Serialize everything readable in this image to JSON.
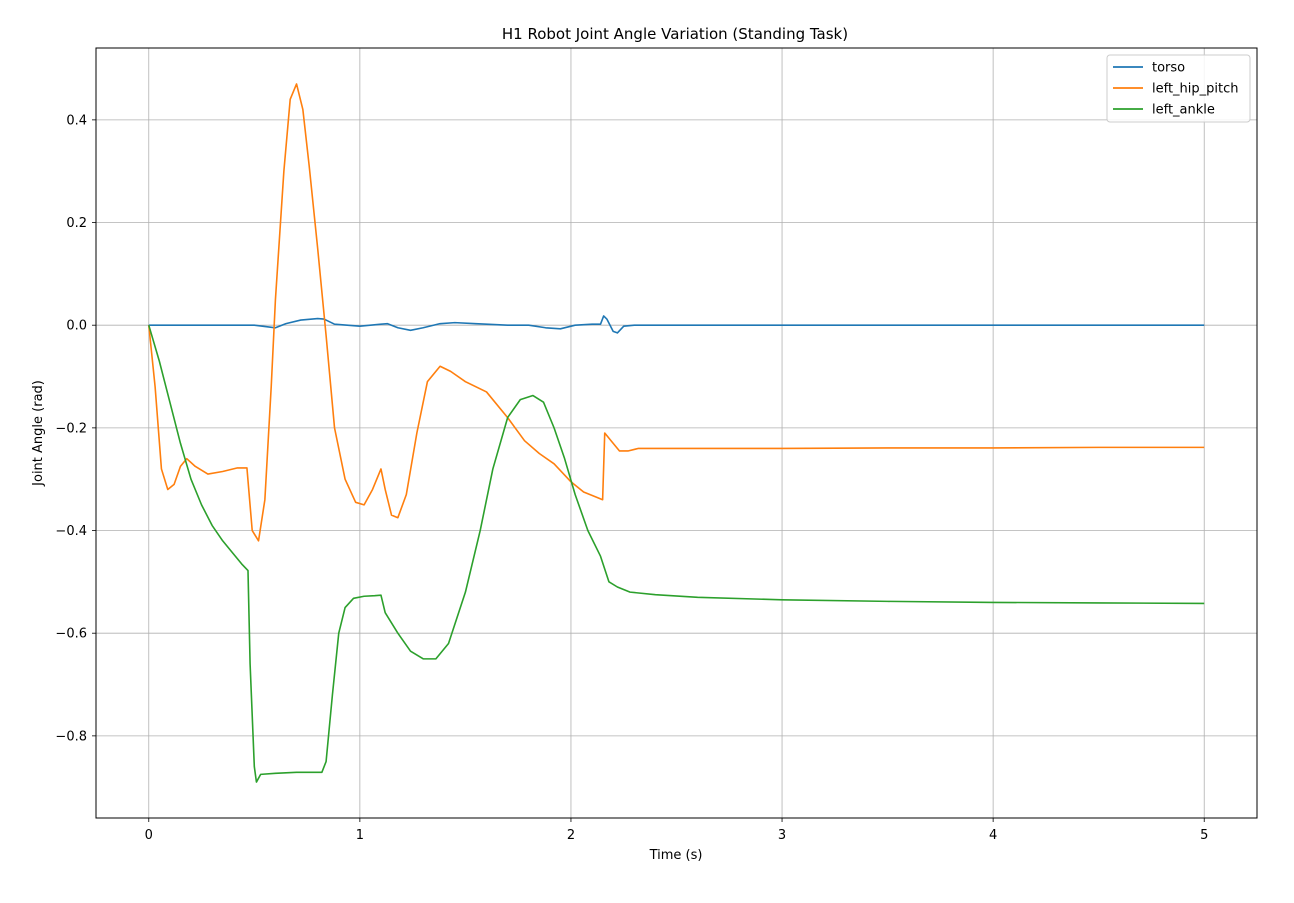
{
  "chart_data": {
    "type": "line",
    "title": "H1 Robot Joint Angle Variation (Standing Task)",
    "xlabel": "Time (s)",
    "ylabel": "Joint Angle (rad)",
    "xlim": [
      -0.25,
      5.25
    ],
    "ylim": [
      -0.96,
      0.54
    ],
    "xticks": [
      0,
      1,
      2,
      3,
      4,
      5
    ],
    "xtick_labels": [
      "0",
      "1",
      "2",
      "3",
      "4",
      "5"
    ],
    "yticks": [
      -0.8,
      -0.6,
      -0.4,
      -0.2,
      0.0,
      0.2,
      0.4
    ],
    "ytick_labels": [
      "−0.8",
      "−0.6",
      "−0.4",
      "−0.2",
      "0.0",
      "0.2",
      "0.4"
    ],
    "grid": true,
    "legend_position": "top-right",
    "series": [
      {
        "name": "torso",
        "color": "#1f77b4",
        "points": [
          [
            0,
            0
          ],
          [
            0.3,
            0
          ],
          [
            0.5,
            0
          ],
          [
            0.6,
            -0.005
          ],
          [
            0.65,
            0.003
          ],
          [
            0.72,
            0.01
          ],
          [
            0.8,
            0.013
          ],
          [
            0.83,
            0.012
          ],
          [
            0.88,
            0.002
          ],
          [
            1.0,
            -0.002
          ],
          [
            1.1,
            0.002
          ],
          [
            1.13,
            0.003
          ],
          [
            1.18,
            -0.005
          ],
          [
            1.24,
            -0.01
          ],
          [
            1.3,
            -0.005
          ],
          [
            1.38,
            0.003
          ],
          [
            1.45,
            0.005
          ],
          [
            1.55,
            0.003
          ],
          [
            1.7,
            0
          ],
          [
            1.8,
            0
          ],
          [
            1.88,
            -0.005
          ],
          [
            1.95,
            -0.007
          ],
          [
            2.02,
            0
          ],
          [
            2.1,
            0.002
          ],
          [
            2.14,
            0.002
          ],
          [
            2.155,
            0.018
          ],
          [
            2.17,
            0.012
          ],
          [
            2.2,
            -0.012
          ],
          [
            2.22,
            -0.015
          ],
          [
            2.25,
            -0.002
          ],
          [
            2.3,
            0
          ],
          [
            3.0,
            0
          ],
          [
            4.0,
            0
          ],
          [
            5.0,
            0
          ]
        ]
      },
      {
        "name": "left_hip_pitch",
        "color": "#ff7f0e",
        "points": [
          [
            0,
            0
          ],
          [
            0.03,
            -0.12
          ],
          [
            0.06,
            -0.28
          ],
          [
            0.09,
            -0.32
          ],
          [
            0.12,
            -0.31
          ],
          [
            0.15,
            -0.275
          ],
          [
            0.18,
            -0.26
          ],
          [
            0.22,
            -0.275
          ],
          [
            0.28,
            -0.29
          ],
          [
            0.35,
            -0.285
          ],
          [
            0.42,
            -0.278
          ],
          [
            0.465,
            -0.278
          ],
          [
            0.49,
            -0.4
          ],
          [
            0.52,
            -0.42
          ],
          [
            0.55,
            -0.34
          ],
          [
            0.58,
            -0.12
          ],
          [
            0.6,
            0.05
          ],
          [
            0.64,
            0.3
          ],
          [
            0.67,
            0.44
          ],
          [
            0.7,
            0.47
          ],
          [
            0.73,
            0.42
          ],
          [
            0.76,
            0.31
          ],
          [
            0.8,
            0.15
          ],
          [
            0.84,
            -0.02
          ],
          [
            0.88,
            -0.2
          ],
          [
            0.93,
            -0.3
          ],
          [
            0.98,
            -0.345
          ],
          [
            1.02,
            -0.35
          ],
          [
            1.06,
            -0.32
          ],
          [
            1.1,
            -0.28
          ],
          [
            1.12,
            -0.32
          ],
          [
            1.15,
            -0.37
          ],
          [
            1.18,
            -0.375
          ],
          [
            1.22,
            -0.33
          ],
          [
            1.27,
            -0.21
          ],
          [
            1.32,
            -0.11
          ],
          [
            1.38,
            -0.08
          ],
          [
            1.43,
            -0.09
          ],
          [
            1.5,
            -0.11
          ],
          [
            1.6,
            -0.13
          ],
          [
            1.7,
            -0.18
          ],
          [
            1.78,
            -0.225
          ],
          [
            1.85,
            -0.25
          ],
          [
            1.92,
            -0.27
          ],
          [
            2.0,
            -0.305
          ],
          [
            2.06,
            -0.325
          ],
          [
            2.12,
            -0.335
          ],
          [
            2.15,
            -0.34
          ],
          [
            2.16,
            -0.21
          ],
          [
            2.19,
            -0.225
          ],
          [
            2.23,
            -0.245
          ],
          [
            2.27,
            -0.245
          ],
          [
            2.32,
            -0.24
          ],
          [
            2.6,
            -0.24
          ],
          [
            3.0,
            -0.24
          ],
          [
            3.5,
            -0.239
          ],
          [
            4.0,
            -0.239
          ],
          [
            4.5,
            -0.238
          ],
          [
            5.0,
            -0.238
          ]
        ]
      },
      {
        "name": "left_ankle",
        "color": "#2ca02c",
        "points": [
          [
            0,
            0
          ],
          [
            0.05,
            -0.07
          ],
          [
            0.1,
            -0.15
          ],
          [
            0.15,
            -0.23
          ],
          [
            0.2,
            -0.3
          ],
          [
            0.25,
            -0.35
          ],
          [
            0.3,
            -0.39
          ],
          [
            0.35,
            -0.42
          ],
          [
            0.4,
            -0.445
          ],
          [
            0.44,
            -0.465
          ],
          [
            0.47,
            -0.478
          ],
          [
            0.48,
            -0.66
          ],
          [
            0.5,
            -0.86
          ],
          [
            0.51,
            -0.89
          ],
          [
            0.53,
            -0.875
          ],
          [
            0.6,
            -0.873
          ],
          [
            0.7,
            -0.871
          ],
          [
            0.82,
            -0.871
          ],
          [
            0.84,
            -0.85
          ],
          [
            0.87,
            -0.72
          ],
          [
            0.9,
            -0.6
          ],
          [
            0.93,
            -0.55
          ],
          [
            0.97,
            -0.532
          ],
          [
            1.02,
            -0.528
          ],
          [
            1.07,
            -0.527
          ],
          [
            1.1,
            -0.526
          ],
          [
            1.12,
            -0.56
          ],
          [
            1.18,
            -0.6
          ],
          [
            1.24,
            -0.635
          ],
          [
            1.3,
            -0.65
          ],
          [
            1.36,
            -0.65
          ],
          [
            1.42,
            -0.62
          ],
          [
            1.5,
            -0.52
          ],
          [
            1.57,
            -0.4
          ],
          [
            1.63,
            -0.28
          ],
          [
            1.7,
            -0.18
          ],
          [
            1.76,
            -0.145
          ],
          [
            1.82,
            -0.137
          ],
          [
            1.87,
            -0.15
          ],
          [
            1.92,
            -0.2
          ],
          [
            1.97,
            -0.26
          ],
          [
            2.02,
            -0.33
          ],
          [
            2.08,
            -0.4
          ],
          [
            2.14,
            -0.45
          ],
          [
            2.18,
            -0.5
          ],
          [
            2.22,
            -0.51
          ],
          [
            2.28,
            -0.52
          ],
          [
            2.4,
            -0.525
          ],
          [
            2.6,
            -0.53
          ],
          [
            3.0,
            -0.535
          ],
          [
            3.5,
            -0.538
          ],
          [
            4.0,
            -0.54
          ],
          [
            4.5,
            -0.541
          ],
          [
            5.0,
            -0.542
          ]
        ]
      }
    ]
  }
}
